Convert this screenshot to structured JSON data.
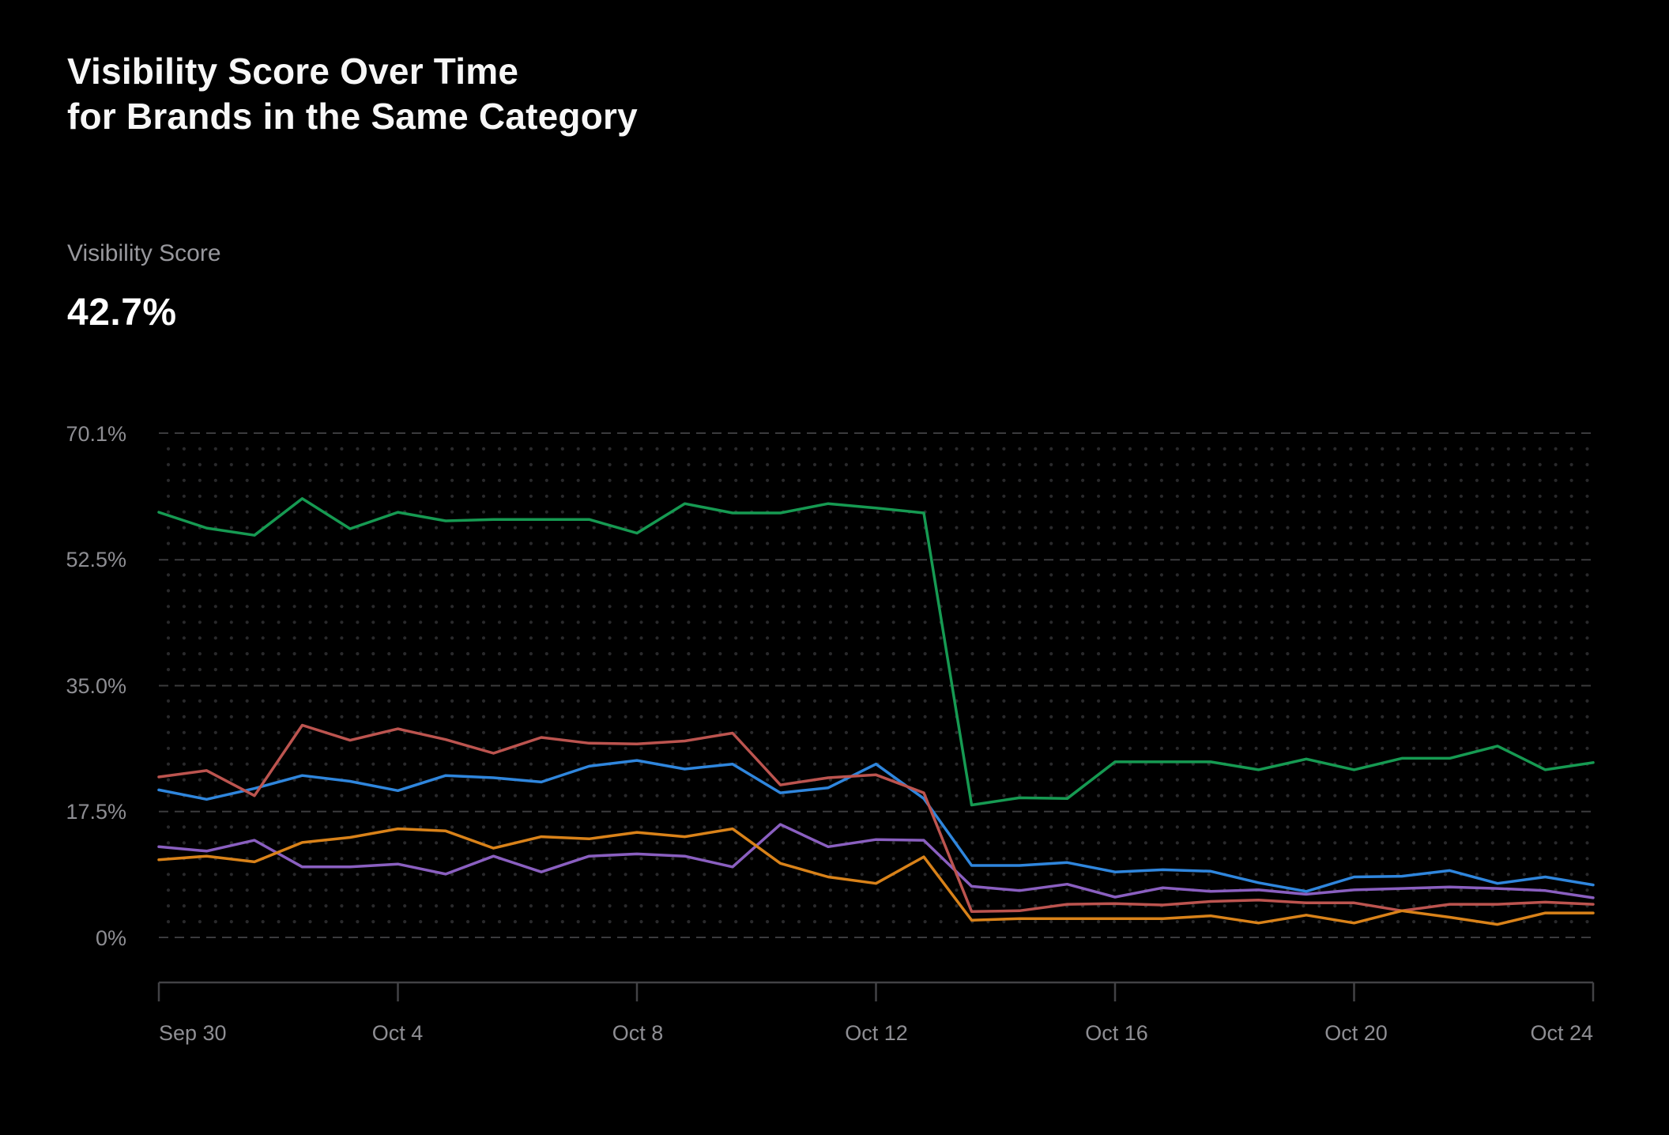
{
  "header": {
    "title_line1": "Visibility Score Over Time",
    "title_line2": "for Brands in the Same Category",
    "metric_label": "Visibility Score",
    "metric_value": "42.7%"
  },
  "colors": {
    "background": "#000000",
    "title_text": "#f7f7f7",
    "muted_text": "#98989d",
    "gridline": "#3b3b3d",
    "grid_dot": "#29292b",
    "axis_line": "#424245"
  },
  "chart_data": {
    "type": "line",
    "title": "Visibility Score Over Time for Brands in the Same Category",
    "xlabel": "",
    "ylabel": "Visibility Score",
    "ylim": [
      0,
      70.1
    ],
    "legend_position": "none",
    "grid": "dashed horizontal major gridlines with dotted minor grid matrix",
    "y_tick_labels": [
      "70.1%",
      "52.5%",
      "35.0%",
      "17.5%",
      "0%"
    ],
    "y_tick_values": [
      70.1,
      52.5,
      35.0,
      17.5,
      0
    ],
    "x_tick_labels": [
      "Sep 30",
      "Oct 4",
      "Oct 8",
      "Oct 12",
      "Oct 16",
      "Oct 20",
      "Oct 24"
    ],
    "x_tick_indices": [
      0,
      5,
      10,
      15,
      20,
      25,
      30
    ],
    "n_points": 31,
    "series": [
      {
        "name": "brand-blue",
        "color": "#2f86dd",
        "values": [
          20.5,
          19.2,
          20.7,
          22.5,
          21.7,
          20.4,
          22.5,
          22.2,
          21.6,
          23.8,
          24.6,
          23.4,
          24.1,
          20.1,
          20.8,
          24.1,
          19.3,
          10.0,
          10.0,
          10.4,
          9.1,
          9.4,
          9.2,
          7.6,
          6.4,
          8.4,
          8.5,
          9.3,
          7.5,
          8.4,
          7.3
        ]
      },
      {
        "name": "brand-purple",
        "color": "#8a5fc0",
        "values": [
          12.6,
          12.0,
          13.5,
          9.8,
          9.8,
          10.2,
          8.8,
          11.3,
          9.1,
          11.3,
          11.6,
          11.3,
          9.8,
          15.7,
          12.6,
          13.6,
          13.5,
          7.1,
          6.5,
          7.4,
          5.6,
          6.9,
          6.4,
          6.6,
          6.0,
          6.6,
          6.8,
          7.0,
          6.8,
          6.5,
          5.5
        ]
      },
      {
        "name": "brand-red",
        "color": "#bc544f",
        "values": [
          22.3,
          23.2,
          19.7,
          29.5,
          27.4,
          29.0,
          27.5,
          25.6,
          27.8,
          27.0,
          26.9,
          27.3,
          28.4,
          21.2,
          22.2,
          22.6,
          20.1,
          3.6,
          3.7,
          4.6,
          4.7,
          4.5,
          5.0,
          5.2,
          4.8,
          4.8,
          3.7,
          4.6,
          4.6,
          4.9,
          4.6
        ]
      },
      {
        "name": "brand-orange",
        "color": "#d98219",
        "values": [
          10.8,
          11.3,
          10.5,
          13.2,
          13.9,
          15.1,
          14.8,
          12.4,
          14.0,
          13.7,
          14.6,
          14.0,
          15.1,
          10.3,
          8.4,
          7.5,
          11.2,
          2.4,
          2.6,
          2.6,
          2.6,
          2.6,
          3.0,
          2.0,
          3.1,
          2.0,
          3.7,
          2.8,
          1.8,
          3.4,
          3.4
        ]
      },
      {
        "name": "brand-green",
        "color": "#169a52",
        "values": [
          59.1,
          56.9,
          55.9,
          61.0,
          56.8,
          59.1,
          57.9,
          58.1,
          58.1,
          58.1,
          56.2,
          60.3,
          59.0,
          59.0,
          60.3,
          59.7,
          59.0,
          18.4,
          19.4,
          19.3,
          24.4,
          24.4,
          24.4,
          23.3,
          24.8,
          23.3,
          24.9,
          24.9,
          26.6,
          23.3,
          24.3
        ]
      }
    ]
  }
}
